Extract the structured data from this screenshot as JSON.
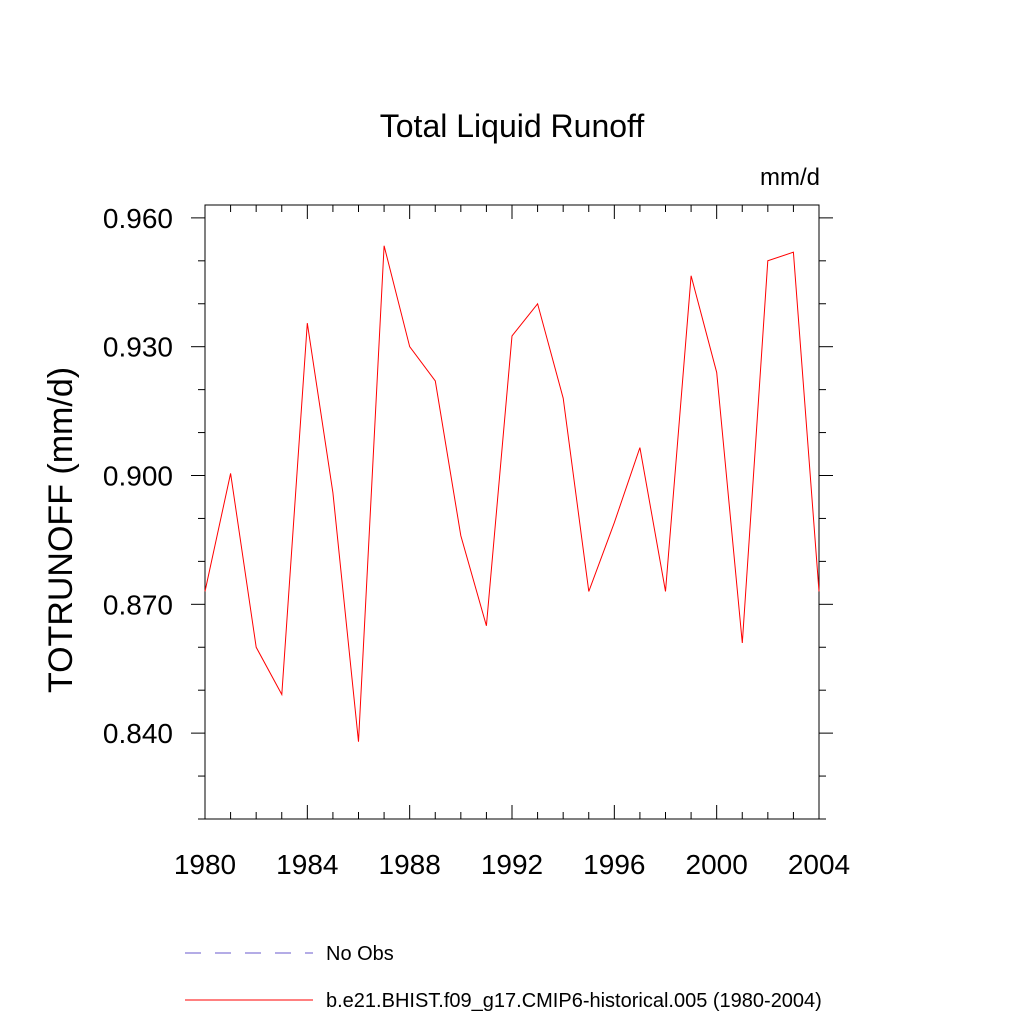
{
  "chart_data": {
    "type": "line",
    "title": "Total Liquid Runoff",
    "units": "mm/d",
    "xlabel": "",
    "ylabel": "TOTRUNOFF  (mm/d)",
    "xlim": [
      1980,
      2004
    ],
    "ylim": [
      0.82,
      0.963
    ],
    "xticks": [
      1980,
      1984,
      1988,
      1992,
      1996,
      2000,
      2004
    ],
    "xtick_labels": [
      "1980",
      "1984",
      "1988",
      "1992",
      "1996",
      "2000",
      "2004"
    ],
    "yticks": [
      0.84,
      0.87,
      0.9,
      0.93,
      0.96
    ],
    "ytick_labels": [
      "0.840",
      "0.870",
      "0.900",
      "0.930",
      "0.960"
    ],
    "grid": false,
    "legend_position": "bottom",
    "x": [
      1980,
      1981,
      1982,
      1983,
      1984,
      1985,
      1986,
      1987,
      1988,
      1989,
      1990,
      1991,
      1992,
      1993,
      1994,
      1995,
      1996,
      1997,
      1998,
      1999,
      2000,
      2001,
      2002,
      2003,
      2004
    ],
    "series": [
      {
        "name": "b.e21.BHIST.f09_g17.CMIP6-historical.005 (1980-2004)",
        "color": "#ff0000",
        "dash": "solid",
        "values": [
          0.873,
          0.9005,
          0.86,
          0.849,
          0.9355,
          0.896,
          0.838,
          0.9535,
          0.93,
          0.922,
          0.886,
          0.865,
          0.9325,
          0.94,
          0.918,
          0.873,
          0.889,
          0.9065,
          0.873,
          0.9465,
          0.924,
          0.861,
          0.95,
          0.952,
          0.873
        ]
      }
    ],
    "legend": [
      {
        "label": "No Obs",
        "color": "#6a5acd",
        "dash": "dashed"
      },
      {
        "label": "b.e21.BHIST.f09_g17.CMIP6-historical.005 (1980-2004)",
        "color": "#ff0000",
        "dash": "solid"
      }
    ]
  }
}
